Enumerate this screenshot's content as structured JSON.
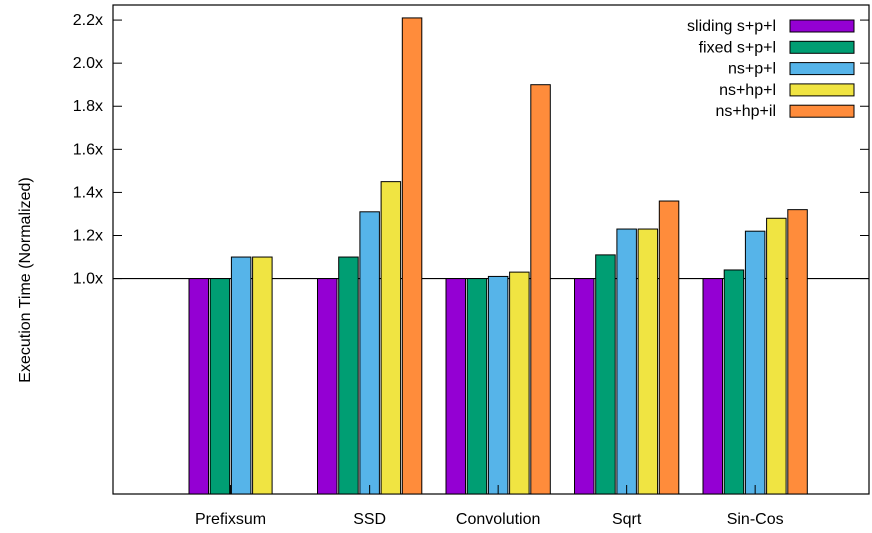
{
  "chart_data": {
    "type": "bar",
    "title": "",
    "xlabel": "",
    "ylabel": "Execution Time (Normalized)",
    "categories": [
      "Prefixsum",
      "SSD",
      "Convolution",
      "Sqrt",
      "Sin-Cos"
    ],
    "series": [
      {
        "name": "sliding s+p+l",
        "color": "#9400d3",
        "values": [
          1.0,
          1.0,
          1.0,
          1.0,
          1.0
        ]
      },
      {
        "name": "fixed s+p+l",
        "color": "#009e73",
        "values": [
          1.0,
          1.1,
          1.0,
          1.11,
          1.04
        ]
      },
      {
        "name": "ns+p+l",
        "color": "#56b4e9",
        "values": [
          1.1,
          1.31,
          1.01,
          1.23,
          1.22
        ]
      },
      {
        "name": "ns+hp+l",
        "color": "#f0e442",
        "values": [
          1.1,
          1.45,
          1.03,
          1.23,
          1.28
        ]
      },
      {
        "name": "ns+hp+il",
        "color": "#ff8c3b",
        "values": [
          null,
          2.21,
          1.9,
          1.36,
          1.32
        ]
      }
    ],
    "yticks": [
      {
        "value": 1.0,
        "label": "1.0x"
      },
      {
        "value": 1.2,
        "label": "1.2x"
      },
      {
        "value": 1.4,
        "label": "1.4x"
      },
      {
        "value": 1.6,
        "label": "1.6x"
      },
      {
        "value": 1.8,
        "label": "1.8x"
      },
      {
        "value": 2.0,
        "label": "2.0x"
      },
      {
        "value": 2.2,
        "label": "2.2x"
      }
    ],
    "ylim": [
      0.0,
      2.27
    ],
    "reference_line": 1.0,
    "grid": false,
    "legend_position": "top-right"
  }
}
